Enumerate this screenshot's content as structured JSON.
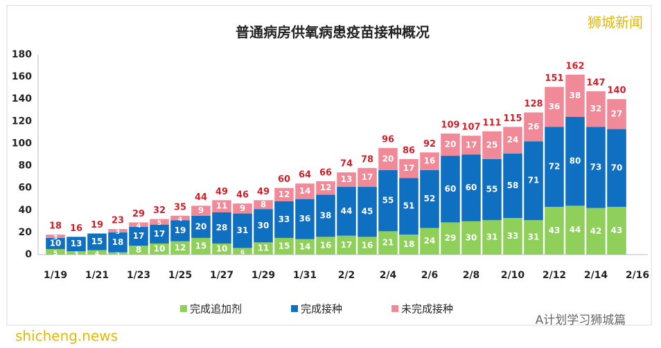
{
  "chart_data": {
    "type": "stacked_bar",
    "title": "普通病房供氧病患疫苗接种概况",
    "categories": [
      "1/19",
      null,
      "1/21",
      null,
      "1/23",
      null,
      "1/25",
      null,
      "1/27",
      null,
      "1/29",
      null,
      "1/31",
      null,
      "2/2",
      null,
      "2/4",
      null,
      "2/6",
      null,
      "2/8",
      null,
      "2/10",
      null,
      "2/12",
      null,
      "2/14",
      null,
      "2/16"
    ],
    "series": [
      {
        "name": "完成追加剂",
        "color": "#8ed05a",
        "values": [
          5,
          3,
          4,
          2,
          8,
          10,
          12,
          15,
          10,
          6,
          11,
          15,
          14,
          16,
          17,
          16,
          21,
          18,
          24,
          29,
          30,
          31,
          33,
          31,
          43,
          44,
          42,
          43,
          null
        ]
      },
      {
        "name": "完成接种",
        "color": "#0f6fc0",
        "values": [
          10,
          13,
          15,
          18,
          17,
          17,
          19,
          20,
          28,
          31,
          30,
          33,
          36,
          38,
          44,
          45,
          55,
          51,
          52,
          60,
          60,
          55,
          58,
          71,
          72,
          80,
          73,
          70,
          null
        ]
      },
      {
        "name": "未完成接种",
        "color": "#f08a98",
        "values": [
          3,
          0,
          0,
          3,
          4,
          5,
          4,
          9,
          11,
          9,
          8,
          12,
          14,
          12,
          13,
          17,
          20,
          17,
          16,
          20,
          17,
          25,
          24,
          26,
          36,
          38,
          32,
          27,
          null
        ]
      }
    ],
    "totals": [
      18,
      16,
      19,
      23,
      29,
      32,
      35,
      44,
      49,
      46,
      49,
      60,
      64,
      66,
      74,
      78,
      96,
      86,
      92,
      109,
      107,
      111,
      115,
      128,
      151,
      162,
      147,
      140,
      null
    ],
    "ylim": [
      0,
      180
    ],
    "yticks": [
      0,
      20,
      40,
      60,
      80,
      100,
      120,
      140,
      160,
      180
    ],
    "grid": false,
    "legend": "bottom"
  },
  "watermarks": {
    "brand": "狮城新闻",
    "account": "A计划学习狮城篇",
    "site": "shicheng.news"
  }
}
